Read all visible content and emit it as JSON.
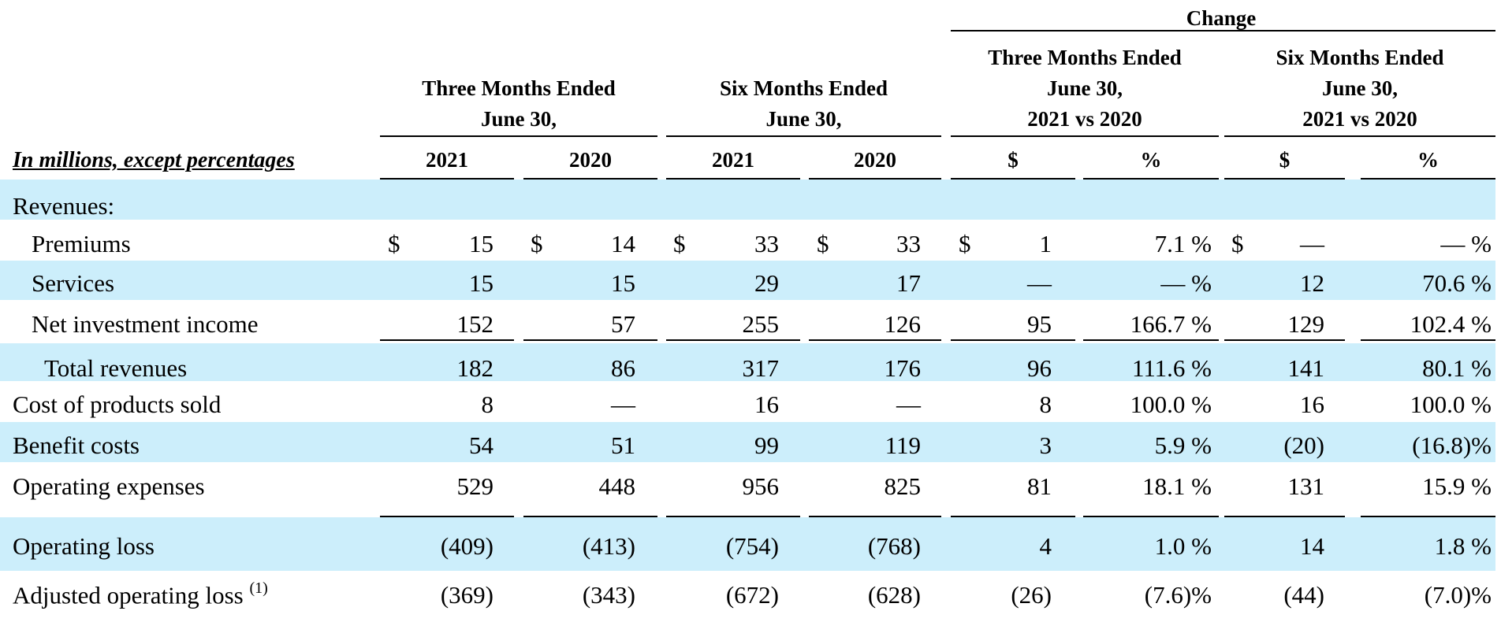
{
  "header": {
    "change_label": "Change",
    "groups": [
      {
        "lines": [
          "Three Months Ended",
          "June 30,"
        ]
      },
      {
        "lines": [
          "Six Months Ended",
          "June 30,"
        ]
      },
      {
        "lines": [
          "Three Months Ended",
          "June 30,",
          "2021 vs 2020"
        ]
      },
      {
        "lines": [
          "Six Months Ended",
          "June 30,",
          "2021 vs 2020"
        ]
      }
    ],
    "unit_label": "In millions, except percentages",
    "columns": [
      "2021",
      "2020",
      "2021",
      "2020",
      "$",
      "%",
      "$",
      "%"
    ]
  },
  "rows": [
    {
      "label": "Revenues:",
      "cells": [
        "",
        "",
        "",
        "",
        "",
        "",
        "",
        ""
      ]
    },
    {
      "label": "Premiums",
      "cells": [
        "15",
        "14",
        "33",
        "33",
        "1",
        "7.1 %",
        "—",
        "— %"
      ]
    },
    {
      "label": "Services",
      "cells": [
        "15",
        "15",
        "29",
        "17",
        "—",
        "— %",
        "12",
        "70.6 %"
      ]
    },
    {
      "label": "Net investment income",
      "cells": [
        "152",
        "57",
        "255",
        "126",
        "95",
        "166.7 %",
        "129",
        "102.4 %"
      ]
    },
    {
      "label": "Total revenues",
      "cells": [
        "182",
        "86",
        "317",
        "176",
        "96",
        "111.6 %",
        "141",
        "80.1 %"
      ]
    },
    {
      "label": "Cost of products sold",
      "cells": [
        "8",
        "—",
        "16",
        "—",
        "8",
        "100.0 %",
        "16",
        "100.0 %"
      ]
    },
    {
      "label": "Benefit costs",
      "cells": [
        "54",
        "51",
        "99",
        "119",
        "3",
        "5.9 %",
        "(20)",
        "(16.8)%"
      ]
    },
    {
      "label": "Operating expenses",
      "cells": [
        "529",
        "448",
        "956",
        "825",
        "81",
        "18.1 %",
        "131",
        "15.9 %"
      ]
    },
    {
      "label": "Operating loss",
      "cells": [
        "(409)",
        "(413)",
        "(754)",
        "(768)",
        "4",
        "1.0 %",
        "14",
        "1.8 %"
      ]
    },
    {
      "label": "Adjusted operating loss",
      "footnote": "(1)",
      "cells": [
        "(369)",
        "(343)",
        "(672)",
        "(628)",
        "(26)",
        "(7.6)%",
        "(44)",
        "(7.0)%"
      ]
    }
  ],
  "currency_symbol": "$",
  "colors": {
    "band": "#cceefb"
  }
}
